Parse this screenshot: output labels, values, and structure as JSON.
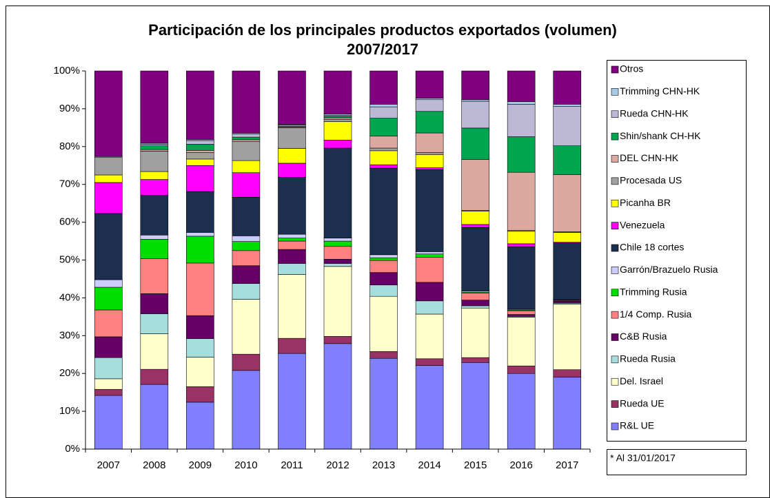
{
  "chart_data": {
    "type": "bar",
    "stacked": true,
    "title": [
      "Participación de los principales productos exportados (volumen)",
      "2007/2017"
    ],
    "note": "* Al 31/01/2017",
    "categories": [
      "2007",
      "2008",
      "2009",
      "2010",
      "2011",
      "2012",
      "2013",
      "2014",
      "2015",
      "2016",
      "2017"
    ],
    "ylim": [
      0,
      100
    ],
    "yticks": [
      {
        "value": 0,
        "label": "0%"
      },
      {
        "value": 10,
        "label": "10%"
      },
      {
        "value": 20,
        "label": "20%"
      },
      {
        "value": 30,
        "label": "30%"
      },
      {
        "value": 40,
        "label": "40%"
      },
      {
        "value": 50,
        "label": "50%"
      },
      {
        "value": 60,
        "label": "60%"
      },
      {
        "value": 70,
        "label": "70%"
      },
      {
        "value": 80,
        "label": "80%"
      },
      {
        "value": 90,
        "label": "90%"
      },
      {
        "value": 100,
        "label": "100%"
      }
    ],
    "legend": "right",
    "series": [
      {
        "name": "R&L UE",
        "color": "#8080ff",
        "values": [
          14.2,
          17.1,
          12.4,
          20.8,
          25.3,
          27.9,
          24.0,
          22.1,
          22.9,
          20.0,
          19.0
        ]
      },
      {
        "name": "Rueda UE",
        "color": "#993366",
        "values": [
          1.6,
          4.0,
          4.1,
          4.3,
          4.0,
          1.9,
          1.8,
          1.8,
          1.3,
          2.0,
          2.0
        ]
      },
      {
        "name": "Del. Israel",
        "color": "#ffffcc",
        "values": [
          2.8,
          9.4,
          7.8,
          14.5,
          16.9,
          18.5,
          14.6,
          11.8,
          13.1,
          12.9,
          17.3
        ]
      },
      {
        "name": "Rueda Rusia",
        "color": "#a6dede",
        "values": [
          5.6,
          5.3,
          4.9,
          4.2,
          2.9,
          0.8,
          3.0,
          3.5,
          0.6,
          0.2,
          0.3
        ]
      },
      {
        "name": "C&B Rusia",
        "color": "#660066",
        "values": [
          5.5,
          5.3,
          6.1,
          4.7,
          3.7,
          1.1,
          3.3,
          4.9,
          1.5,
          0.5,
          0.5
        ]
      },
      {
        "name": "1/4 Comp. Rusia",
        "color": "#ff8080",
        "values": [
          7.1,
          9.3,
          13.9,
          4.0,
          2.2,
          3.4,
          3.2,
          6.6,
          1.9,
          1.0,
          0.2
        ]
      },
      {
        "name": "Trimming Rusia",
        "color": "#00dd00",
        "values": [
          6.0,
          5.1,
          7.1,
          2.4,
          0.8,
          1.4,
          0.7,
          0.9,
          0.2,
          0.2,
          0.1
        ]
      },
      {
        "name": "Garrón/Brazuelo Rusia",
        "color": "#ccccff",
        "values": [
          2.0,
          1.1,
          1.0,
          1.5,
          1.0,
          0.8,
          0.8,
          0.6,
          0.3,
          0.2,
          0.1
        ]
      },
      {
        "name": "Chile 18 cortes",
        "color": "#1c2f4f",
        "values": [
          17.5,
          10.5,
          10.8,
          10.2,
          15.1,
          23.8,
          22.9,
          21.7,
          16.8,
          16.5,
          15.0
        ]
      },
      {
        "name": "Venezuela",
        "color": "#ff00ff",
        "values": [
          8.2,
          4.2,
          6.9,
          6.5,
          3.7,
          2.1,
          0.9,
          0.5,
          0.8,
          0.8,
          0.2
        ]
      },
      {
        "name": "Picanha BR",
        "color": "#ffff00",
        "values": [
          2.0,
          2.1,
          1.7,
          3.2,
          3.9,
          4.9,
          3.7,
          3.5,
          3.5,
          3.3,
          2.6
        ]
      },
      {
        "name": "Procesada US",
        "color": "#a0a0a0",
        "values": [
          4.7,
          5.4,
          1.7,
          5.0,
          5.5,
          0.6,
          0.7,
          0.5,
          0.2,
          0.2,
          0.2
        ]
      },
      {
        "name": "DEL CHN-HK",
        "color": "#dca8a0",
        "values": [
          0,
          0.4,
          0.6,
          0.5,
          0.2,
          0.4,
          3.2,
          5.2,
          13.5,
          15.4,
          15.1
        ]
      },
      {
        "name": "Shin/shank CH-HK",
        "color": "#00a550",
        "values": [
          0,
          1.0,
          1.6,
          0.7,
          0.2,
          0.4,
          4.7,
          5.7,
          8.3,
          9.4,
          7.6
        ]
      },
      {
        "name": "Rueda CHN-HK",
        "color": "#bdb8d6",
        "values": [
          0,
          0.4,
          1.0,
          0.8,
          0.3,
          0.3,
          3.0,
          3.1,
          7.1,
          8.6,
          10.4
        ]
      },
      {
        "name": "Trimming CHN-HK",
        "color": "#a6cbe8",
        "values": [
          0.2,
          0.3,
          0.3,
          0.3,
          0.2,
          0.3,
          0.7,
          0.4,
          0.4,
          0.7,
          0.6
        ]
      },
      {
        "name": "Otros",
        "color": "#800080",
        "values": [
          22.6,
          19.1,
          18.1,
          16.4,
          14.1,
          11.4,
          8.8,
          7.2,
          7.6,
          8.1,
          8.8
        ]
      }
    ]
  }
}
